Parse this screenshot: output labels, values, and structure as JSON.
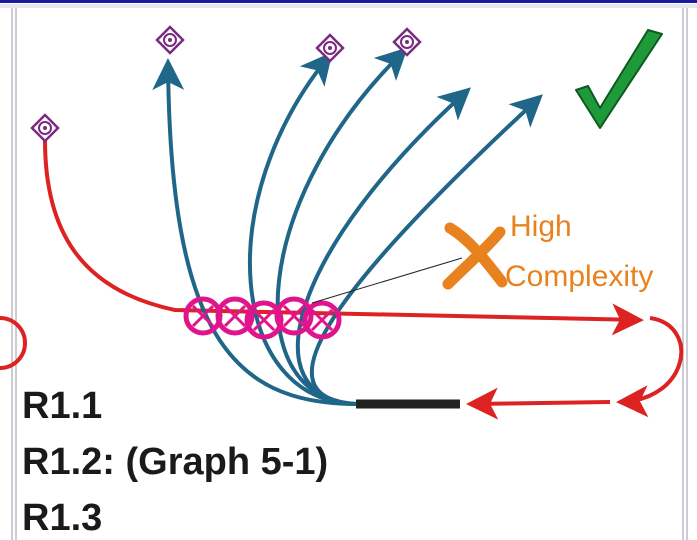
{
  "annotation": {
    "line1": "High",
    "line2": "Complexity"
  },
  "requirements": [
    {
      "label": "R1.1"
    },
    {
      "label": "R1.2: (Graph 5-1)"
    },
    {
      "label": "R1.3"
    }
  ],
  "colors": {
    "rejected_path": "#dd2222",
    "candidate_path": "#1f6688",
    "conflict_marker": "#e0148c",
    "goal_marker": "#7a2a80",
    "check_mark": "#1f9a3a",
    "cross_mark": "#e8821e",
    "annotation_text": "#e8821e",
    "header_rule": "#1a1aa0",
    "vehicle": "#222222"
  },
  "icons": [
    "check-icon",
    "cross-icon",
    "goal-diamond-icon",
    "conflict-circle-icon"
  ]
}
